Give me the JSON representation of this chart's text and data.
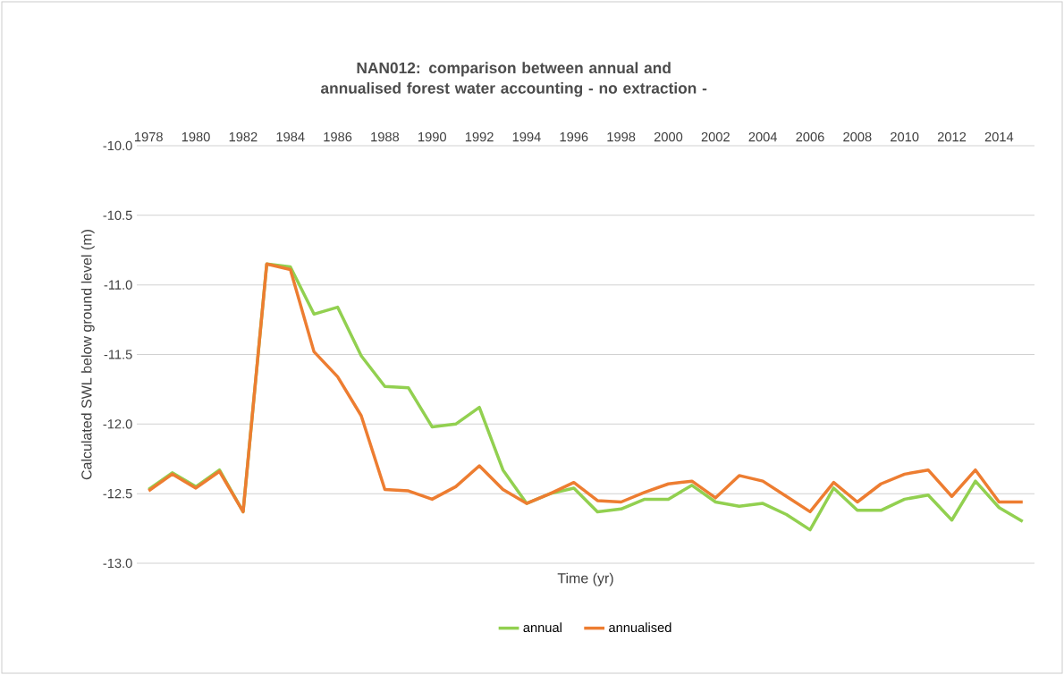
{
  "chart_data": {
    "type": "line",
    "title": "NAN012: comparison between annual and annualised forest water accounting - no extraction -",
    "xlabel": "Time (yr)",
    "ylabel": "Calculated SWL below ground level (m)",
    "x": [
      1978,
      1979,
      1980,
      1981,
      1982,
      1983,
      1984,
      1985,
      1986,
      1987,
      1988,
      1989,
      1990,
      1991,
      1992,
      1993,
      1994,
      1995,
      1996,
      1997,
      1998,
      1999,
      2000,
      2001,
      2002,
      2003,
      2004,
      2005,
      2006,
      2007,
      2008,
      2009,
      2010,
      2011,
      2012,
      2013,
      2014,
      2015
    ],
    "series": [
      {
        "name": "annual",
        "color": "#92d050",
        "values": [
          -12.47,
          -12.35,
          -12.45,
          -12.33,
          -12.63,
          -10.85,
          -10.87,
          -11.21,
          -11.16,
          -11.51,
          -11.73,
          -11.74,
          -12.02,
          -12.0,
          -11.88,
          -12.33,
          -12.57,
          -12.5,
          -12.46,
          -12.63,
          -12.61,
          -12.54,
          -12.54,
          -12.44,
          -12.56,
          -12.59,
          -12.57,
          -12.65,
          -12.76,
          -12.46,
          -12.62,
          -12.62,
          -12.54,
          -12.51,
          -12.69,
          -12.41,
          -12.6,
          -12.7
        ]
      },
      {
        "name": "annualised",
        "color": "#ed7d31",
        "values": [
          -12.48,
          -12.36,
          -12.46,
          -12.34,
          -12.63,
          -10.85,
          -10.89,
          -11.48,
          -11.66,
          -11.94,
          -12.47,
          -12.48,
          -12.54,
          -12.45,
          -12.3,
          -12.47,
          -12.57,
          -12.5,
          -12.42,
          -12.55,
          -12.56,
          -12.49,
          -12.43,
          -12.41,
          -12.53,
          -12.37,
          -12.41,
          -12.52,
          -12.63,
          -12.42,
          -12.56,
          -12.43,
          -12.36,
          -12.33,
          -12.52,
          -12.33,
          -12.56,
          -12.56
        ]
      }
    ],
    "xlim": [
      1977.5,
      2015.5
    ],
    "xticks": [
      1978,
      1980,
      1982,
      1984,
      1986,
      1988,
      1990,
      1992,
      1994,
      1996,
      1998,
      2000,
      2002,
      2004,
      2006,
      2008,
      2010,
      2012,
      2014
    ],
    "ylim": [
      -13,
      -10
    ],
    "yticks": [
      {
        "value": -13,
        "label": "-13.0"
      },
      {
        "value": -12.5,
        "label": "-12.5"
      },
      {
        "value": -12,
        "label": "-12.0"
      },
      {
        "value": -11.5,
        "label": "-11.5"
      },
      {
        "value": -11,
        "label": "-11.0"
      },
      {
        "value": -10.5,
        "label": "-10.5"
      },
      {
        "value": -10,
        "label": "-10.0"
      }
    ],
    "grid": "y",
    "legend": "bottom"
  }
}
